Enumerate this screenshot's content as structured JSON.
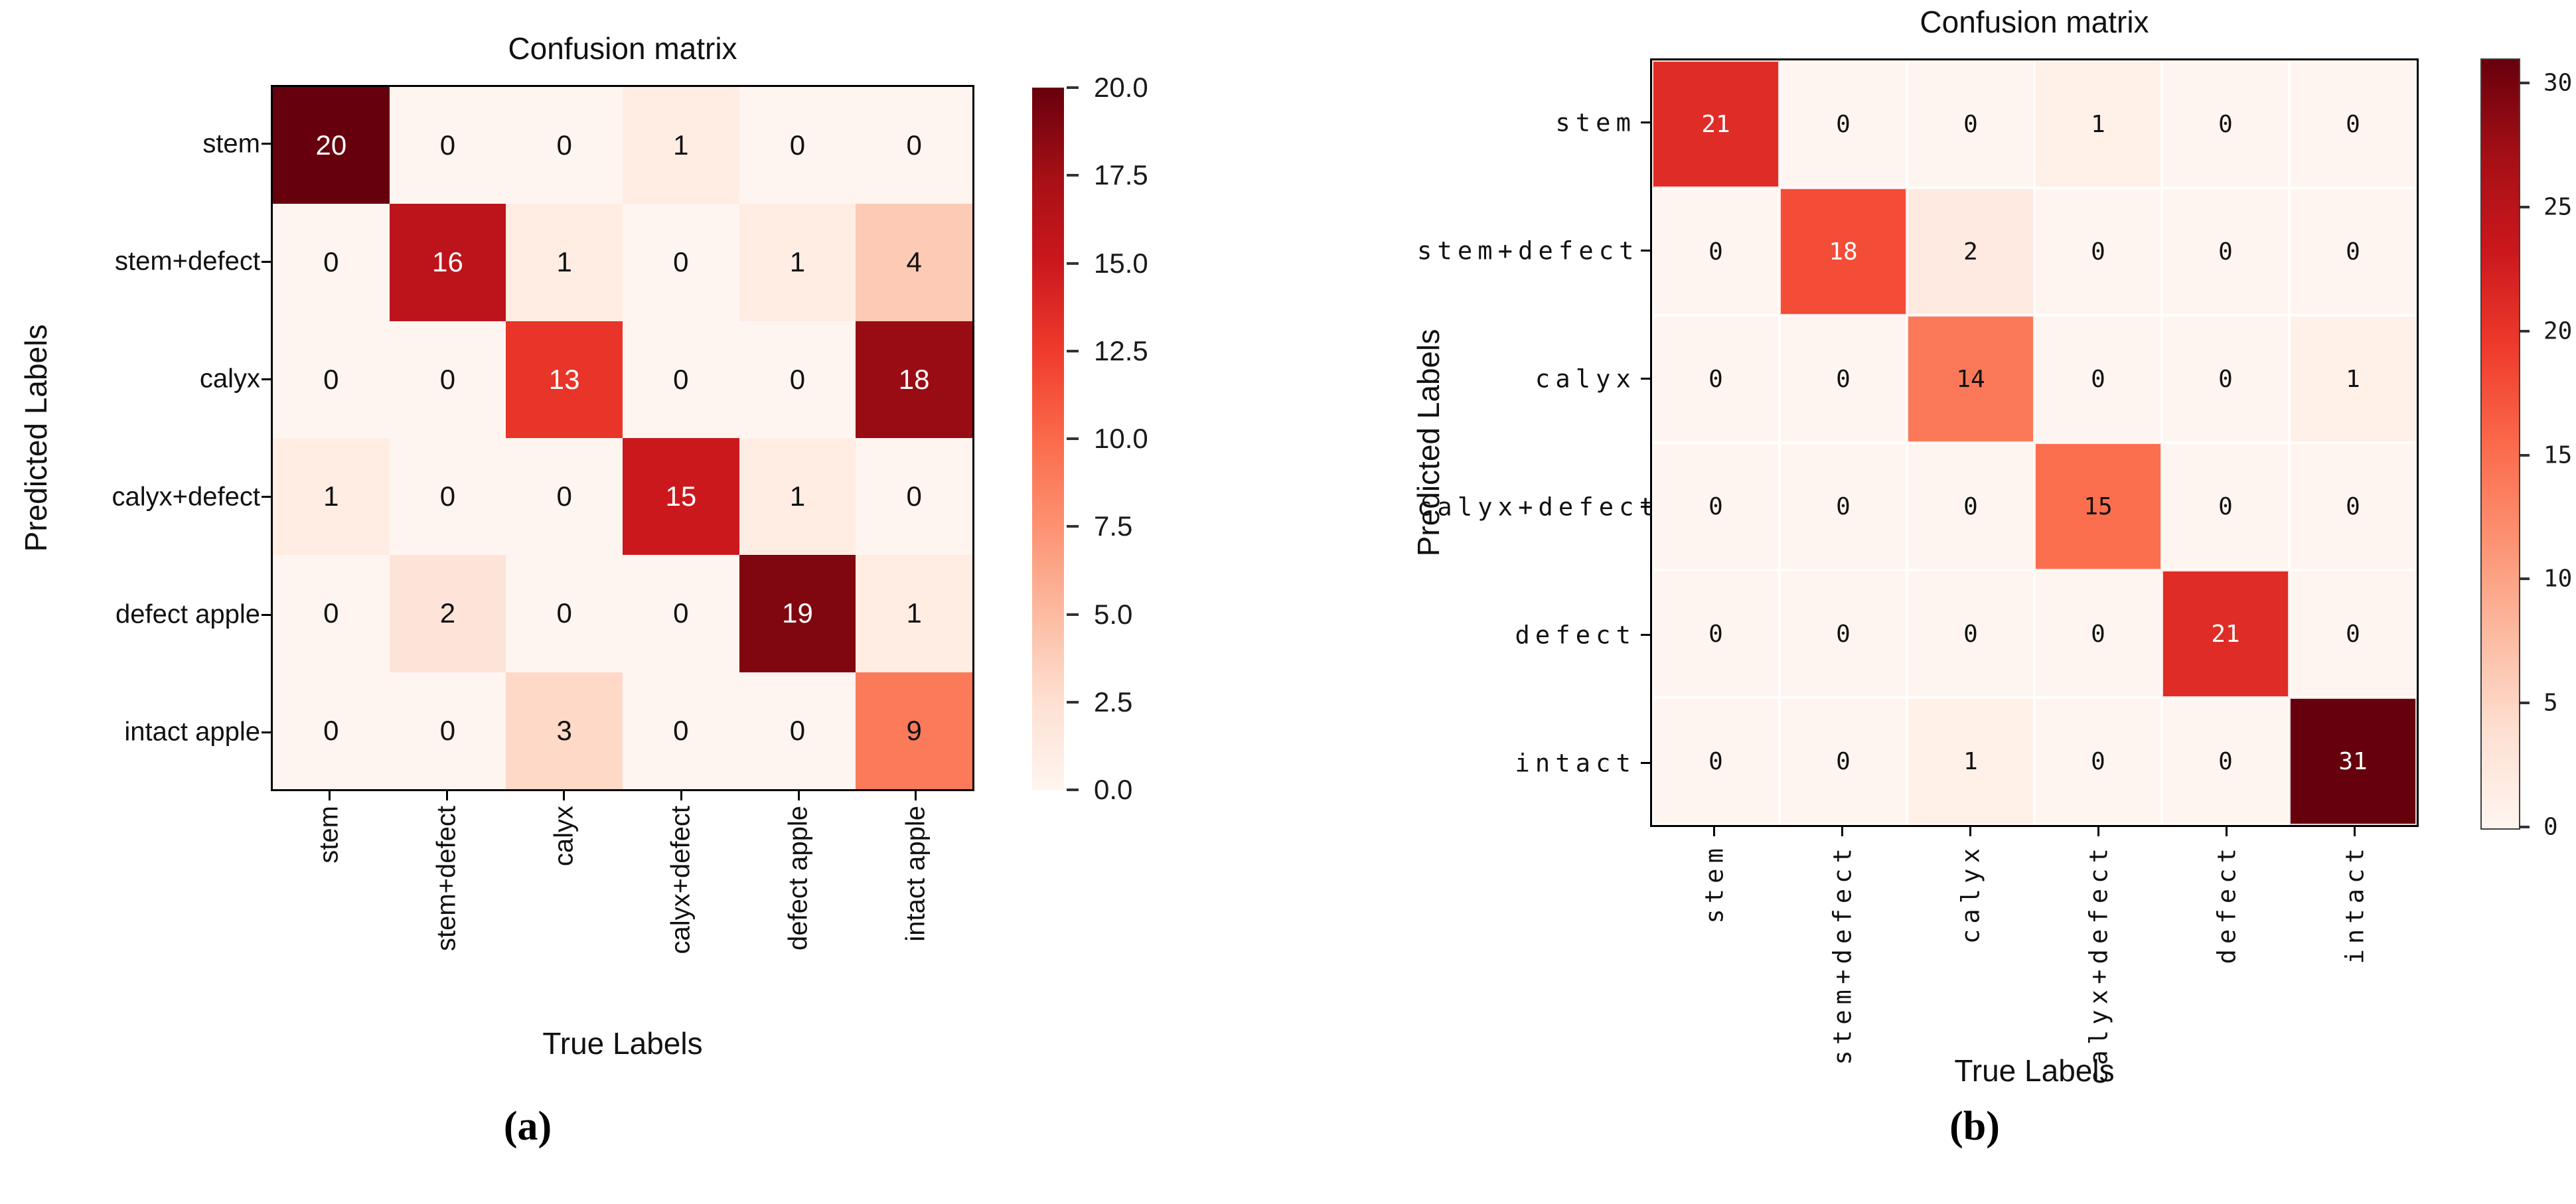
{
  "colormap": {
    "name": "Reds",
    "anchors": [
      "#fff5f0",
      "#fee0d2",
      "#fcbba1",
      "#fc9272",
      "#fb6a4a",
      "#ef3b2c",
      "#cb181d",
      "#a50f15",
      "#67000d"
    ]
  },
  "text_colors": {
    "high_value": "#ffffff",
    "low_value": "#111111"
  },
  "chart_data": [
    {
      "type": "heatmap",
      "panel": "a",
      "caption": "(a)",
      "title": "Confusion matrix",
      "xlabel": "True Labels",
      "ylabel": "Predicted Labels",
      "x_tick_labels": [
        "stem",
        "stem+defect",
        "calyx",
        "calyx+defect",
        "defect apple",
        "intact apple"
      ],
      "y_tick_labels": [
        "stem",
        "stem+defect",
        "calyx",
        "calyx+defect",
        "defect apple",
        "intact apple"
      ],
      "matrix": [
        [
          20,
          0,
          0,
          1,
          0,
          0
        ],
        [
          0,
          16,
          1,
          0,
          1,
          4
        ],
        [
          0,
          0,
          13,
          0,
          0,
          18
        ],
        [
          1,
          0,
          0,
          15,
          1,
          0
        ],
        [
          0,
          2,
          0,
          0,
          19,
          1
        ],
        [
          0,
          0,
          3,
          0,
          0,
          9
        ]
      ],
      "vmin": 0,
      "vmax": 20,
      "colorbar": {
        "tick_values": [
          20,
          17.5,
          15,
          12.5,
          10,
          7.5,
          5,
          2.5,
          0
        ],
        "tick_labels": [
          "20.0",
          "17.5",
          "15.0",
          "12.5",
          "10.0",
          "7.5",
          "5.0",
          "2.5",
          "0.0"
        ]
      }
    },
    {
      "type": "heatmap",
      "panel": "b",
      "caption": "(b)",
      "title": "Confusion matrix",
      "xlabel": "True Labels",
      "ylabel": "Predicted Labels",
      "x_tick_labels": [
        "stem",
        "stem+defect",
        "calyx",
        "calyx+defect",
        "defect",
        "intact"
      ],
      "y_tick_labels": [
        "stem",
        "stem+defect",
        "calyx",
        "calyx+defect",
        "defect",
        "intact"
      ],
      "matrix": [
        [
          21,
          0,
          0,
          1,
          0,
          0
        ],
        [
          0,
          18,
          2,
          0,
          0,
          0
        ],
        [
          0,
          0,
          14,
          0,
          0,
          1
        ],
        [
          0,
          0,
          0,
          15,
          0,
          0
        ],
        [
          0,
          0,
          0,
          0,
          21,
          0
        ],
        [
          0,
          0,
          1,
          0,
          0,
          31
        ]
      ],
      "vmin": 0,
      "vmax": 31,
      "colorbar": {
        "tick_values": [
          30,
          25,
          20,
          15,
          10,
          5,
          0
        ],
        "tick_labels": [
          "30",
          "25",
          "20",
          "15",
          "10",
          "5",
          "0"
        ]
      }
    }
  ]
}
